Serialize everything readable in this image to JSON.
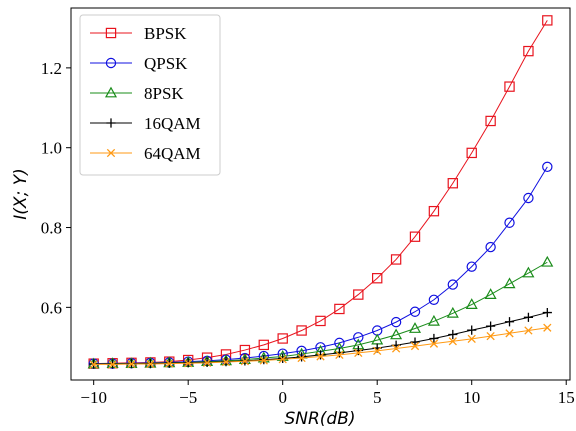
{
  "chart_data": {
    "type": "line",
    "xlabel": "SNR(dB)",
    "ylabel": "I(X; Y)",
    "xlim": [
      -11.2,
      15.2
    ],
    "ylim": [
      0.418,
      1.35
    ],
    "x_ticks": [
      -10,
      -5,
      0,
      5,
      10,
      15
    ],
    "x_tick_labels": [
      "−10",
      "−5",
      "0",
      "5",
      "10",
      "15"
    ],
    "y_ticks": [
      0.6,
      0.8,
      1.0,
      1.2
    ],
    "y_tick_labels": [
      "0.6",
      "0.8",
      "1.0",
      "1.2"
    ],
    "grid": false,
    "legend_position": "top-left",
    "x": [
      -10,
      -9,
      -8,
      -7,
      -6,
      -5,
      -4,
      -3,
      -2,
      -1,
      0,
      1,
      2,
      3,
      4,
      5,
      6,
      7,
      8,
      9,
      10,
      11,
      12,
      13,
      14
    ],
    "series": [
      {
        "name": "BPSK",
        "color": "#e8141e",
        "marker": "square",
        "values": [
          0.459,
          0.46,
          0.461,
          0.462,
          0.464,
          0.468,
          0.474,
          0.482,
          0.493,
          0.506,
          0.522,
          0.542,
          0.566,
          0.596,
          0.632,
          0.673,
          0.72,
          0.777,
          0.841,
          0.911,
          0.987,
          1.067,
          1.153,
          1.242,
          1.319
        ]
      },
      {
        "name": "QPSK",
        "color": "#1010e0",
        "marker": "circle",
        "values": [
          0.459,
          0.459,
          0.46,
          0.461,
          0.462,
          0.464,
          0.466,
          0.469,
          0.473,
          0.478,
          0.484,
          0.491,
          0.5,
          0.511,
          0.525,
          0.542,
          0.563,
          0.589,
          0.619,
          0.657,
          0.702,
          0.751,
          0.812,
          0.874,
          0.952
        ]
      },
      {
        "name": "8PSK",
        "color": "#1a8c1a",
        "marker": "triangle",
        "values": [
          0.458,
          0.459,
          0.459,
          0.46,
          0.461,
          0.462,
          0.464,
          0.466,
          0.469,
          0.473,
          0.477,
          0.483,
          0.49,
          0.497,
          0.506,
          0.518,
          0.531,
          0.547,
          0.565,
          0.585,
          0.607,
          0.632,
          0.659,
          0.686,
          0.713
        ]
      },
      {
        "name": "16QAM",
        "color": "#000000",
        "marker": "plus",
        "values": [
          0.458,
          0.458,
          0.459,
          0.459,
          0.46,
          0.461,
          0.462,
          0.464,
          0.466,
          0.469,
          0.472,
          0.476,
          0.481,
          0.486,
          0.492,
          0.498,
          0.505,
          0.513,
          0.522,
          0.532,
          0.543,
          0.553,
          0.564,
          0.575,
          0.587
        ]
      },
      {
        "name": "64QAM",
        "color": "#ff9a14",
        "marker": "x",
        "values": [
          0.457,
          0.457,
          0.458,
          0.458,
          0.459,
          0.46,
          0.461,
          0.463,
          0.465,
          0.467,
          0.47,
          0.473,
          0.477,
          0.481,
          0.486,
          0.491,
          0.497,
          0.503,
          0.509,
          0.515,
          0.521,
          0.528,
          0.535,
          0.542,
          0.549
        ]
      }
    ]
  }
}
